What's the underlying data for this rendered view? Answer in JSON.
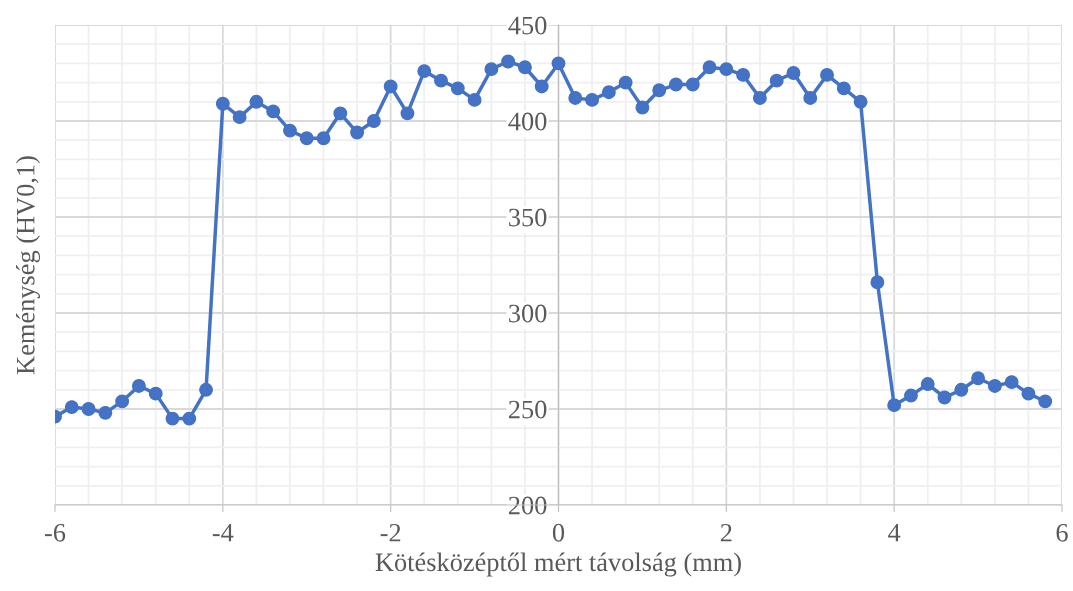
{
  "chart_data": {
    "type": "line",
    "xlabel": "Kötésközéptől mért távolság (mm)",
    "ylabel": "Keménység (HV0,1)",
    "x": [
      -6,
      -5.8,
      -5.6,
      -5.4,
      -5.2,
      -5,
      -4.8,
      -4.6,
      -4.4,
      -4.2,
      -4,
      -3.8,
      -3.6,
      -3.4,
      -3.2,
      -3,
      -2.8,
      -2.6,
      -2.4,
      -2.2,
      -2,
      -1.8,
      -1.6,
      -1.4,
      -1.2,
      -1,
      -0.8,
      -0.6,
      -0.4,
      -0.2,
      0,
      0.2,
      0.4,
      0.6,
      0.8,
      1,
      1.2,
      1.4,
      1.6,
      1.8,
      2,
      2.2,
      2.4,
      2.6,
      2.8,
      3,
      3.2,
      3.4,
      3.6,
      3.8,
      4,
      4.2,
      4.4,
      4.6,
      4.8,
      5,
      5.2,
      5.4,
      5.6,
      5.8
    ],
    "series": [
      {
        "color": "#4472c4",
        "values": [
          246,
          251,
          250,
          248,
          254,
          262,
          258,
          245,
          245,
          260,
          409,
          402,
          410,
          405,
          395,
          391,
          391,
          404,
          394,
          400,
          418,
          404,
          426,
          421,
          417,
          411,
          427,
          431,
          428,
          418,
          430,
          412,
          411,
          415,
          420,
          407,
          416,
          419,
          419,
          428,
          427,
          424,
          412,
          421,
          425,
          412,
          424,
          417,
          410,
          316,
          252,
          257,
          263,
          256,
          260,
          266,
          262,
          264,
          258,
          254
        ]
      }
    ],
    "xlim": [
      -6,
      6
    ],
    "xticks": [
      -6,
      -4,
      -2,
      0,
      2,
      4,
      6
    ],
    "ylim": [
      200,
      450
    ],
    "yticks": [
      200,
      250,
      300,
      350,
      400,
      450
    ],
    "grid": true,
    "marker": "circle",
    "line_style": "solid"
  }
}
